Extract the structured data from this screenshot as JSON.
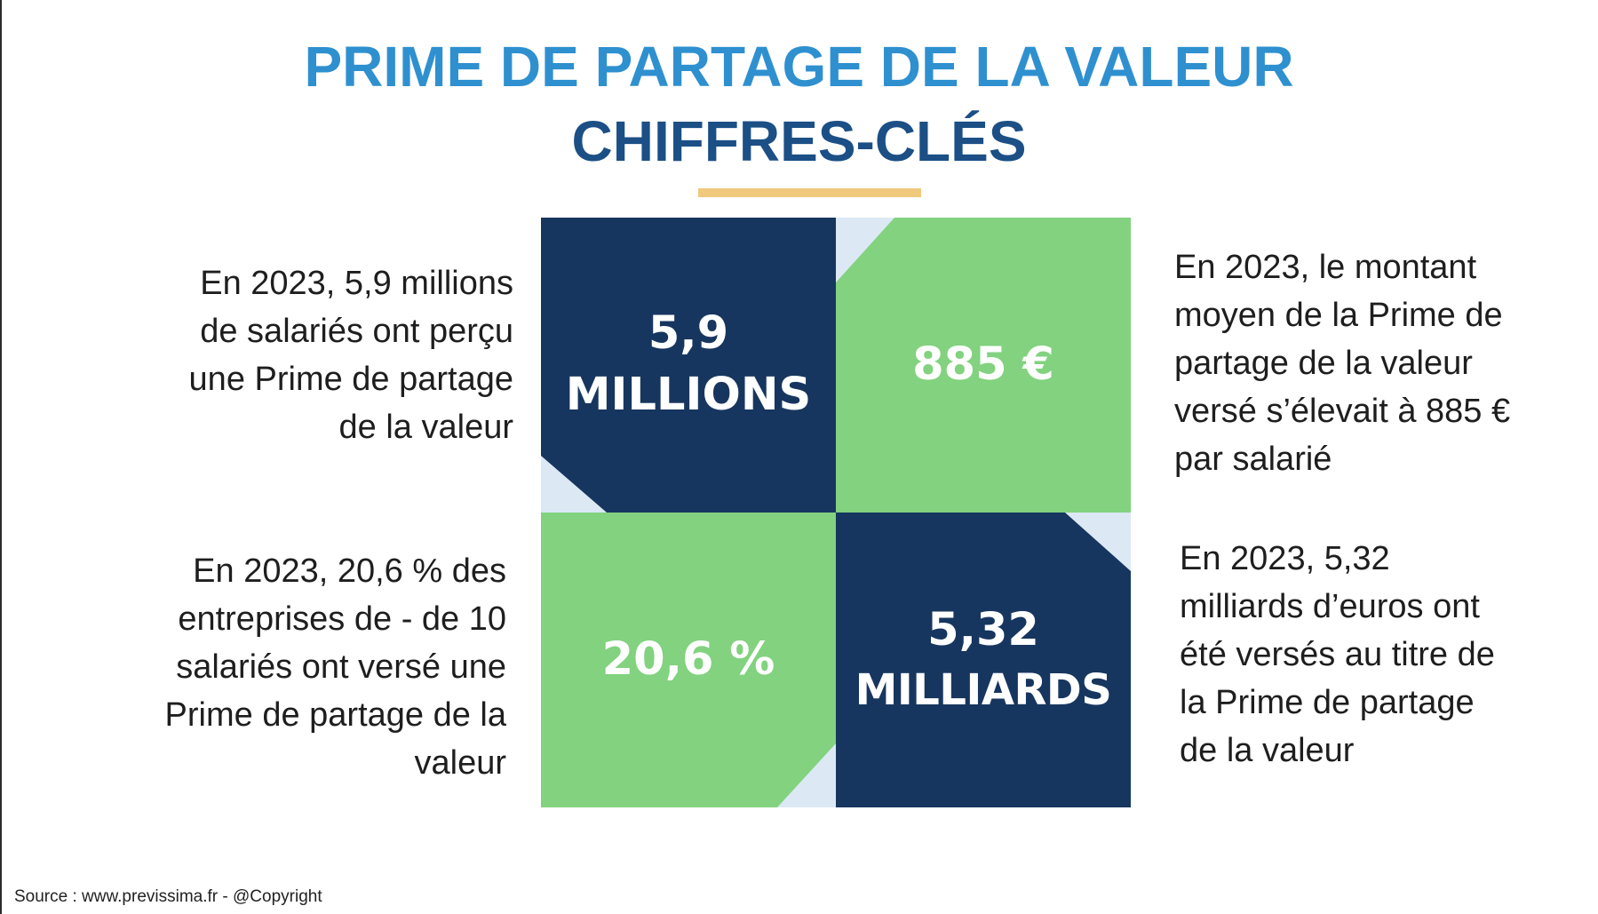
{
  "header": {
    "title": "PRIME DE PARTAGE DE LA VALEUR",
    "subtitle": "CHIFFRES-CLÉS"
  },
  "colors": {
    "title_blue": "#2f90d0",
    "subtitle_navy": "#1b4f86",
    "accent": "#f1c97c",
    "dark_cell": "#17365f",
    "green_cell": "#82d27f",
    "corner_light": "#dce9f5"
  },
  "tiles": {
    "employees": {
      "value": "5,9",
      "unit": "MILLIONS"
    },
    "average_amount": {
      "value": "885 €"
    },
    "small_companies": {
      "value": "20,6 %"
    },
    "total_paid": {
      "value": "5,32",
      "unit": "MILLIARDS"
    }
  },
  "descriptions": {
    "employees": [
      "En 2023, 5,9 millions",
      "de salariés ont perçu",
      "une Prime de partage",
      "de la valeur"
    ],
    "average_amount": [
      "En 2023, le montant",
      "moyen de la Prime de",
      "partage de la valeur",
      "versé s’élevait à 885 €",
      "par salarié"
    ],
    "small_companies": [
      "En 2023, 20,6 % des",
      "entreprises de - de 10",
      "salariés ont versé une",
      "Prime de partage de la",
      "valeur"
    ],
    "total_paid": [
      "En 2023, 5,32",
      "milliards d’euros ont",
      "été versés au titre de",
      "la Prime de partage",
      "de la valeur"
    ]
  },
  "footer": {
    "source": "Source : www.previssima.fr - @Copyright"
  }
}
